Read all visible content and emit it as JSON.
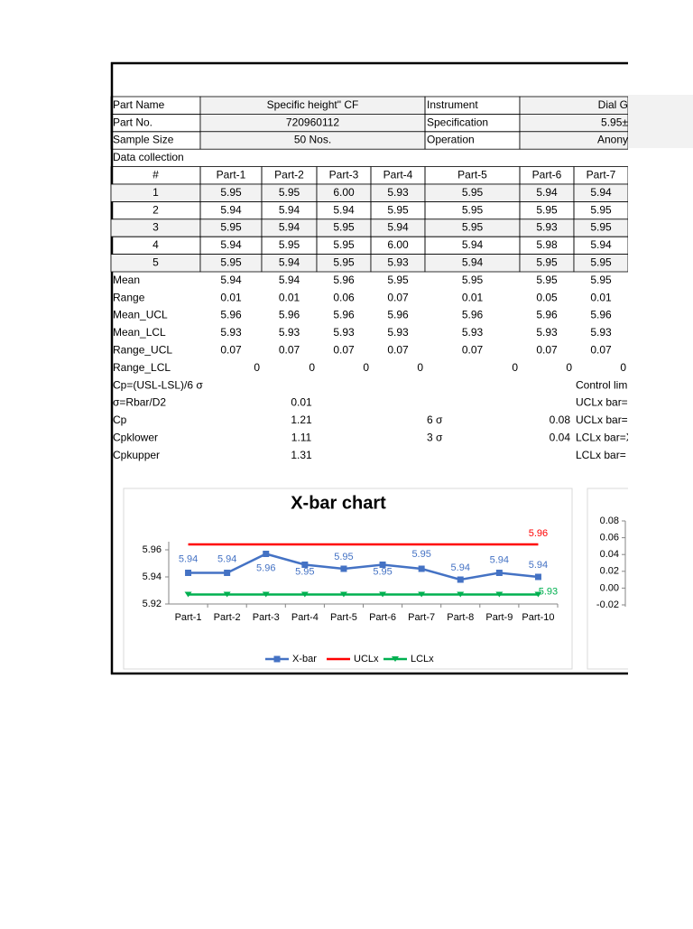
{
  "sheet": {
    "header": [
      [
        "Part Name",
        "Specific height\" CF",
        "Instrument",
        "Dial G"
      ],
      [
        "Part No.",
        "720960112",
        "Specification",
        "5.95±"
      ],
      [
        "Sample Size",
        "50 Nos.",
        "Operation",
        "Anony"
      ]
    ],
    "section_label": "Data collection",
    "table": {
      "columns": [
        "#",
        "Part-1",
        "Part-2",
        "Part-3",
        "Part-4",
        "Part-5",
        "Part-6",
        "Part-7"
      ],
      "rows": [
        [
          "1",
          "5.95",
          "5.95",
          "6.00",
          "5.93",
          "5.95",
          "5.94",
          "5.94"
        ],
        [
          "2",
          "5.94",
          "5.94",
          "5.94",
          "5.95",
          "5.95",
          "5.95",
          "5.95"
        ],
        [
          "3",
          "5.95",
          "5.94",
          "5.95",
          "5.94",
          "5.95",
          "5.93",
          "5.95"
        ],
        [
          "4",
          "5.94",
          "5.95",
          "5.95",
          "6.00",
          "5.94",
          "5.98",
          "5.94"
        ],
        [
          "5",
          "5.95",
          "5.94",
          "5.95",
          "5.93",
          "5.94",
          "5.95",
          "5.95"
        ]
      ]
    },
    "stats": [
      [
        "Mean",
        "5.94",
        "5.94",
        "5.96",
        "5.95",
        "5.95",
        "5.95",
        "5.95"
      ],
      [
        "Range",
        "0.01",
        "0.01",
        "0.06",
        "0.07",
        "0.01",
        "0.05",
        "0.01"
      ],
      [
        "Mean_UCL",
        "5.96",
        "5.96",
        "5.96",
        "5.96",
        "5.96",
        "5.96",
        "5.96"
      ],
      [
        "Mean_LCL",
        "5.93",
        "5.93",
        "5.93",
        "5.93",
        "5.93",
        "5.93",
        "5.93"
      ],
      [
        "Range_UCL",
        "0.07",
        "0.07",
        "0.07",
        "0.07",
        "0.07",
        "0.07",
        "0.07"
      ]
    ],
    "range_lcl": [
      "Range_LCL",
      "0",
      "0",
      "0",
      "0",
      "0",
      "0",
      "0"
    ],
    "capability": [
      {
        "label": "Cp=(USL-LSL)/6 σ",
        "note": "Control lim"
      },
      {
        "label": "σ=Rbar/D2",
        "value": "0.01",
        "note": "UCLx bar=X"
      },
      {
        "label": "Cp",
        "value": "1.21",
        "sigma": "6 σ",
        "limit": "0.08",
        "note": "UCLx bar="
      },
      {
        "label": "Cpklower",
        "value": "1.11",
        "sigma": "3 σ",
        "limit": "0.04",
        "note": "LCLx bar=X"
      },
      {
        "label": "Cpkupper",
        "value": "1.31",
        "note": "LCLx bar="
      }
    ]
  },
  "chart_data": [
    {
      "type": "line",
      "title": "X-bar chart",
      "categories": [
        "Part-1",
        "Part-2",
        "Part-3",
        "Part-4",
        "Part-5",
        "Part-6",
        "Part-7",
        "Part-8",
        "Part-9",
        "Part-10"
      ],
      "series": [
        {
          "name": "X-bar",
          "color": "#4472c4",
          "marker": "square",
          "values": [
            5.943,
            5.943,
            5.957,
            5.949,
            5.946,
            5.949,
            5.946,
            5.938,
            5.943,
            5.94
          ],
          "value_labels": [
            "5.94",
            "5.94",
            "5.96",
            "5.95",
            "5.95",
            "5.95",
            "5.95",
            "5.94",
            "5.94",
            "5.94"
          ]
        },
        {
          "name": "UCLx",
          "color": "#ff0000",
          "marker": "none",
          "values": [
            5.964,
            5.964,
            5.964,
            5.964,
            5.964,
            5.964,
            5.964,
            5.964,
            5.964,
            5.964
          ],
          "value_labels": [
            null,
            null,
            null,
            null,
            null,
            null,
            null,
            null,
            null,
            "5.96"
          ]
        },
        {
          "name": "LCLx",
          "color": "#00b050",
          "marker": "triangle",
          "values": [
            5.927,
            5.927,
            5.927,
            5.927,
            5.927,
            5.927,
            5.927,
            5.927,
            5.927,
            5.927
          ],
          "value_labels": [
            null,
            null,
            null,
            null,
            null,
            null,
            null,
            null,
            null,
            "5.93"
          ]
        }
      ],
      "ylim": [
        5.92,
        5.966
      ],
      "yticks": [
        5.92,
        5.94,
        5.96
      ],
      "legend": "bottom"
    },
    {
      "type": "line",
      "ylim": [
        -0.02,
        0.08
      ],
      "yticks": [
        -0.02,
        {
          "value": 0,
          "label": "0.00"
        },
        0.02,
        0.04,
        0.06,
        0.08
      ]
    }
  ]
}
